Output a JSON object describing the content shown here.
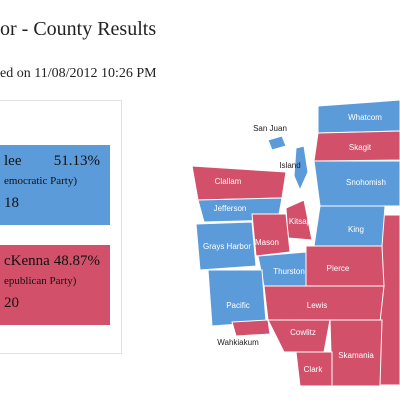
{
  "header": {
    "title": "or - County Results",
    "updated": "ed on 11/08/2012 10:26 PM"
  },
  "candidates": [
    {
      "name": "lee",
      "percent": "51.13%",
      "party": "emocratic Party)",
      "votes": "18"
    },
    {
      "name": "cKenna",
      "percent": "48.87%",
      "party": "epublican Party)",
      "votes": "20"
    }
  ],
  "map": {
    "counties": [
      "Whatcom",
      "San Juan",
      "Skagit",
      "Island",
      "Clallam",
      "Snohomish",
      "Jefferson",
      "Kitsap",
      "King",
      "Grays Harbor",
      "Mason",
      "Thurston",
      "Pierce",
      "Pacific",
      "Lewis",
      "Wahkiakum",
      "Cowlitz",
      "Skamania",
      "Clark"
    ]
  }
}
